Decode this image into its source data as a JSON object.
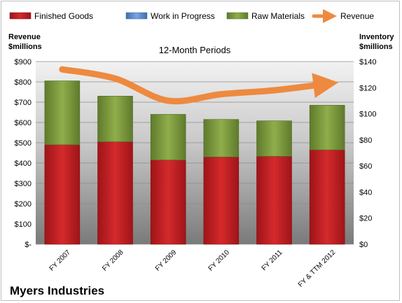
{
  "chart_data": {
    "type": "bar",
    "stacked": true,
    "subtitle": "12-Month Periods",
    "categories": [
      "FY 2007",
      "FY 2008",
      "FY 2009",
      "FY 2010",
      "FY 2011",
      "FY & TTM 2012"
    ],
    "series": [
      {
        "name": "Finished Goods",
        "axis": "left",
        "color": "#c0191d",
        "values": [
          490,
          505,
          415,
          430,
          433,
          465
        ]
      },
      {
        "name": "Work in Progress",
        "axis": "left",
        "color": "#5b8ed1",
        "values": [
          0,
          0,
          0,
          0,
          0,
          0
        ]
      },
      {
        "name": "Raw Materials",
        "axis": "left",
        "color": "#77933c",
        "values": [
          315,
          225,
          225,
          185,
          175,
          220
        ]
      },
      {
        "name": "Revenue",
        "type": "line",
        "axis": "right",
        "color": "#ed8a3f",
        "values": [
          134,
          127,
          110,
          115,
          118,
          123
        ]
      }
    ],
    "left_axis": {
      "title_lines": [
        "Revenue",
        "$millions"
      ],
      "range": [
        0,
        900
      ],
      "tick_values": [
        0,
        100,
        200,
        300,
        400,
        500,
        600,
        700,
        800,
        900
      ],
      "tick_labels": [
        "$-",
        "$100",
        "$200",
        "$300",
        "$400",
        "$500",
        "$600",
        "$700",
        "$800",
        "$900"
      ]
    },
    "right_axis": {
      "title_lines": [
        "Inventory",
        "$millions"
      ],
      "range": [
        0,
        140
      ],
      "tick_values": [
        0,
        20,
        40,
        60,
        80,
        100,
        120,
        140
      ],
      "tick_labels": [
        "$0",
        "$20",
        "$40",
        "$60",
        "$80",
        "$100",
        "$120",
        "$140"
      ]
    },
    "grid": true,
    "legend_position": "top"
  },
  "company_name": "Myers Industries"
}
